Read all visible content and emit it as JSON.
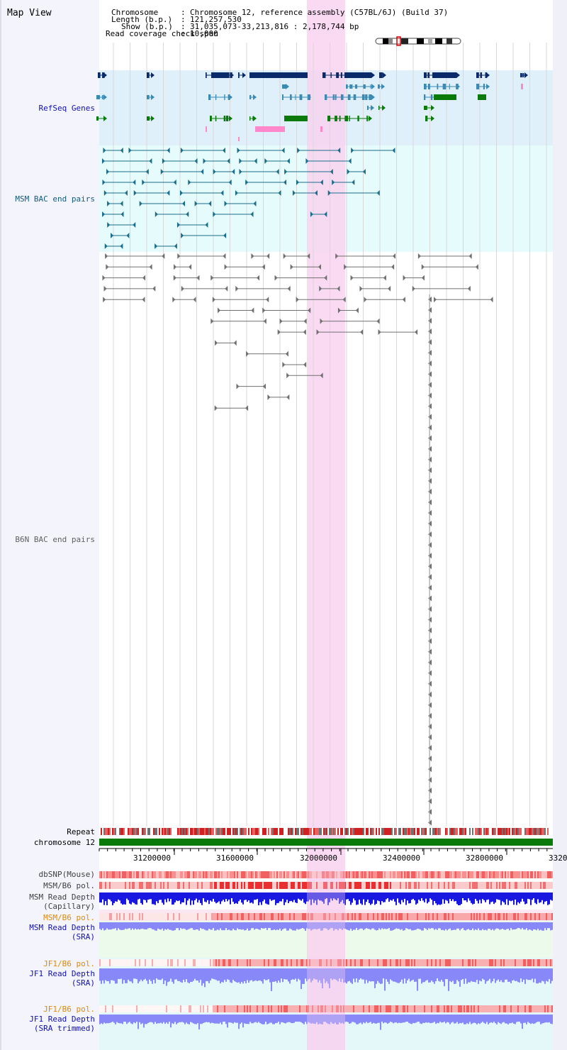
{
  "title": "Map View",
  "info": {
    "chromosome_key": "Chromosome",
    "chromosome_val": "Chromosome 12, reference assembly (C57BL/6J) (Build 37)",
    "length_key": "Length (b.p.)",
    "length_val": "121,257,530",
    "show_key": "Show (b.p.)",
    "show_val": "31,035,073-33,213,816 : 2,178,744 bp",
    "span_key": "Read coverage check span",
    "span_val": "10,000"
  },
  "tracks": {
    "refseq": "RefSeq Genes",
    "msm_bac": "MSM BAC end pairs",
    "b6n_bac": "B6N BAC end pairs",
    "repeat": "Repeat",
    "chrom": "chromosome 12",
    "dbsnp": "dbSNP(Mouse)",
    "msm_b6_pol": "MSM/B6 pol.",
    "msm_depth_cap_1": "MSM Read Depth",
    "msm_depth_cap_2": "(Capillary)",
    "msm_b6_pol2": "MSM/B6 pol.",
    "msm_depth_sra_1": "MSM Read Depth",
    "msm_depth_sra_2": "(SRA)",
    "jf1_pol": "JF1/B6 pol.",
    "jf1_depth_1": "JF1 Read Depth",
    "jf1_depth_2": "(SRA)",
    "jf1_pol2": "JF1/B6 pol.",
    "jf1_trim_1": "JF1 Read Depth",
    "jf1_trim_2": "(SRA trimmed)"
  },
  "axis": {
    "ticks": [
      "31200000",
      "31600000",
      "32000000",
      "32400000",
      "32800000",
      "3320"
    ]
  },
  "colors": {
    "refseq_bg": "#dff0fa",
    "msm_bg": "#e6fbfb",
    "highlight": "#f8d4f0",
    "navy": "#0a2a6a",
    "teal": "#3a8ab4",
    "green": "#0a7a0a",
    "pink": "#ff88cc",
    "msm_bac": "#1a6e8c",
    "b6n_bac": "#707070",
    "depth": "#1818e0",
    "depth_light": "#8888f8",
    "snp_red": "#e02020",
    "label_blue": "#1010b0",
    "label_teal": "#105a80",
    "label_orange": "#e08a00"
  }
}
